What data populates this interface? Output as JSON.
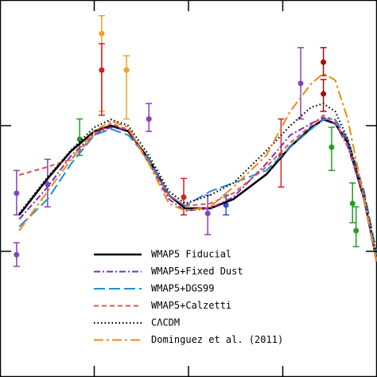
{
  "chart_data": {
    "type": "line",
    "log_x": true,
    "log_y": true,
    "xlim": [
      0.1,
      1000
    ],
    "ylim": [
      0.1,
      100
    ],
    "xticks": [
      1,
      10,
      100
    ],
    "yticks": [
      1,
      10
    ],
    "legend": "lower center",
    "x": [
      0.16,
      0.32,
      0.57,
      1.0,
      1.5,
      2.3,
      3.8,
      6.2,
      9.2,
      17,
      30,
      67,
      120,
      200,
      270,
      360,
      490,
      730,
      1000
    ],
    "series": [
      {
        "name": "WMAP5 Fiducial",
        "color": "#000000",
        "linestyle": "solid",
        "values": [
          1.95,
          3.8,
          6.3,
          9.0,
          10,
          9.0,
          5.4,
          2.8,
          2.2,
          2.2,
          2.6,
          4.1,
          6.8,
          9.6,
          11.2,
          10.4,
          7.3,
          2.6,
          0.82
        ]
      },
      {
        "name": "WMAP5+Fixed Dust",
        "color": "#7b2fbe",
        "linestyle": "dashdot",
        "values": [
          1.8,
          3.25,
          5.8,
          8.6,
          9.7,
          9.3,
          5.1,
          2.6,
          2.1,
          2.2,
          2.7,
          5.0,
          8.4,
          10.4,
          11.6,
          10.4,
          6.8,
          2.6,
          0.82
        ]
      },
      {
        "name": "WMAP5+DGS99",
        "color": "#1f8fd8",
        "linestyle": "longdash",
        "values": [
          1.57,
          2.6,
          5.0,
          8.4,
          9.4,
          8.4,
          5.4,
          2.8,
          2.3,
          3.0,
          3.5,
          4.4,
          6.75,
          9.4,
          11.2,
          11.2,
          7.8,
          3.0,
          0.94
        ]
      },
      {
        "name": "WMAP5+Calzetti",
        "color": "#e05050",
        "linestyle": "dash",
        "values": [
          4.05,
          4.7,
          5.4,
          8.4,
          10.4,
          9.3,
          5.0,
          2.8,
          2.3,
          2.4,
          2.9,
          4.7,
          7.3,
          10,
          12.1,
          10.9,
          7.0,
          2.8,
          0.82
        ]
      },
      {
        "name": "CΛCDM",
        "color": "#000000",
        "linestyle": "dotted",
        "values": [
          2.0,
          3.9,
          6.4,
          9.7,
          11.2,
          10,
          5.8,
          3.0,
          2.4,
          2.8,
          3.5,
          6.3,
          10,
          14,
          15,
          13,
          7.8,
          2.8,
          0.88
        ]
      },
      {
        "name": "Dominguez et al. (2011)",
        "color": "#f08a10",
        "linestyle": "dashdotlong",
        "values": [
          1.46,
          3.0,
          5.4,
          9.0,
          10.9,
          9.7,
          5.0,
          2.4,
          2.1,
          2.26,
          3.25,
          5.8,
          13,
          21.6,
          26,
          23,
          11.2,
          2.6,
          0.82
        ]
      }
    ],
    "points": [
      {
        "x": 1.2,
        "y": 54,
        "lo": 13,
        "hi": 75,
        "color": "#f4a020"
      },
      {
        "x": 1.2,
        "y": 27.7,
        "lo": 12.1,
        "hi": 44.9,
        "color": "#d42020"
      },
      {
        "x": 2.2,
        "y": 27.7,
        "lo": 11.3,
        "hi": 36,
        "color": "#f4a020"
      },
      {
        "x": 3.8,
        "y": 11.3,
        "lo": 9.0,
        "hi": 15.0,
        "color": "#8a40c0"
      },
      {
        "x": 0.7,
        "y": 7.8,
        "lo": 5.8,
        "hi": 11.3,
        "color": "#20a020"
      },
      {
        "x": 0.32,
        "y": 3.4,
        "lo": 2.26,
        "hi": 5.4,
        "color": "#8a40c0"
      },
      {
        "x": 0.15,
        "y": 2.9,
        "lo": 1.95,
        "hi": 4.4,
        "color": "#8a40c0"
      },
      {
        "x": 0.15,
        "y": 0.94,
        "lo": 0.76,
        "hi": 1.17,
        "color": "#8a40c0"
      },
      {
        "x": 8.9,
        "y": 2.7,
        "lo": 1.95,
        "hi": 3.8,
        "color": "#d42020"
      },
      {
        "x": 16,
        "y": 2.0,
        "lo": 1.36,
        "hi": 2.8,
        "color": "#8a40c0"
      },
      {
        "x": 155,
        "y": 21.7,
        "lo": 11.3,
        "hi": 41.8,
        "color": "#8a40c0"
      },
      {
        "x": 270,
        "y": 32,
        "lo": 25,
        "hi": 41.8,
        "color": "#a01010"
      },
      {
        "x": 270,
        "y": 17.9,
        "lo": 13,
        "hi": 23.3,
        "color": "#a01010"
      },
      {
        "x": 330,
        "y": 6.75,
        "lo": 4.4,
        "hi": 9.7,
        "color": "#20a020"
      },
      {
        "x": 550,
        "y": 2.4,
        "lo": 1.69,
        "hi": 3.5,
        "color": "#20a020"
      },
      {
        "x": 600,
        "y": 1.46,
        "lo": 1.09,
        "hi": 2.26,
        "color": "#20a020"
      },
      {
        "x": 96,
        "y": 5.8,
        "lo": 3.25,
        "hi": 11.3,
        "color": "#d42020"
      },
      {
        "x": 25,
        "y": 2.33,
        "lo": 1.95,
        "hi": 2.8,
        "color": "#3050d0"
      }
    ]
  }
}
